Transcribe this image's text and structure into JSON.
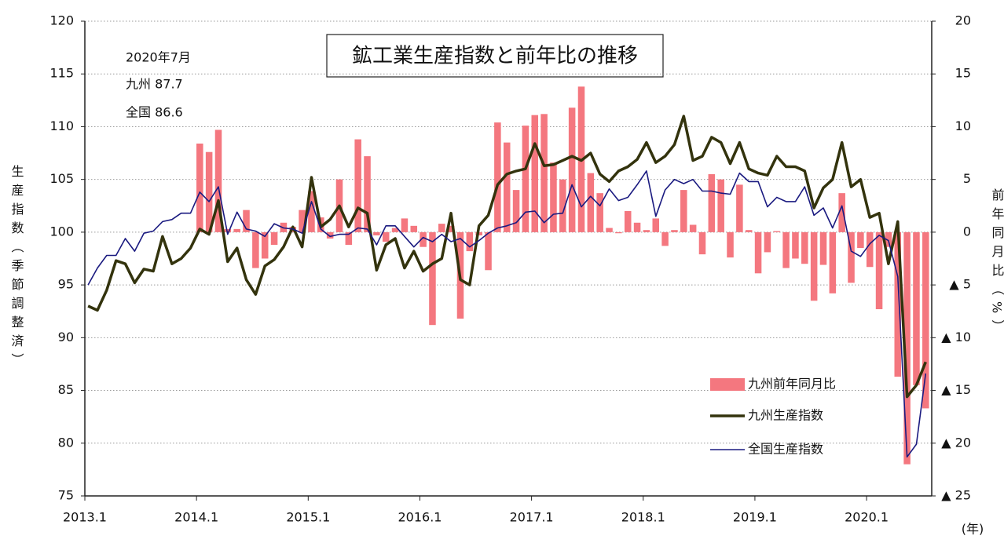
{
  "chart_data": {
    "type": "combo",
    "title": "鉱工業生産指数と前年比の推移",
    "annotations": [
      "2020年7月",
      "九州  87.7",
      "全国  86.6"
    ],
    "y_label": "生産指数（季節調整済）",
    "y2_label": "前年同月比（%）",
    "x_label": "(年)",
    "categories": [
      "2013.1",
      null,
      null,
      null,
      null,
      null,
      null,
      null,
      null,
      null,
      null,
      null,
      "2014.1",
      null,
      null,
      null,
      null,
      null,
      null,
      null,
      null,
      null,
      null,
      null,
      "2015.1",
      null,
      null,
      null,
      null,
      null,
      null,
      null,
      null,
      null,
      null,
      null,
      "2016.1",
      null,
      null,
      null,
      null,
      null,
      null,
      null,
      null,
      null,
      null,
      null,
      "2017.1",
      null,
      null,
      null,
      null,
      null,
      null,
      null,
      null,
      null,
      null,
      null,
      "2018.1",
      null,
      null,
      null,
      null,
      null,
      null,
      null,
      null,
      null,
      null,
      null,
      "2019.1",
      null,
      null,
      null,
      null,
      null,
      null,
      null,
      null,
      null,
      null,
      null,
      "2020.1",
      null,
      null,
      null,
      null,
      null,
      null
    ],
    "series": [
      {
        "name": "九州前年同月比",
        "type": "bar",
        "axis": "y2",
        "color": "#f4777f",
        "values": [
          null,
          null,
          null,
          null,
          null,
          null,
          null,
          null,
          null,
          null,
          null,
          null,
          8.4,
          7.6,
          9.7,
          0.3,
          0.3,
          2.1,
          -3.4,
          -2.5,
          -1.2,
          0.9,
          0.5,
          2.1,
          3.9,
          1.4,
          -0.6,
          5.0,
          -1.2,
          8.8,
          7.2,
          -0.3,
          -0.9,
          0.4,
          1.3,
          0.6,
          -1.4,
          -8.8,
          0.8,
          0.6,
          -8.2,
          -1.8,
          -0.3,
          -3.6,
          10.4,
          8.5,
          4.0,
          10.1,
          11.1,
          11.2,
          6.6,
          5.0,
          11.8,
          13.8,
          5.6,
          3.7,
          0.4,
          -0.1,
          2.0,
          0.9,
          0.2,
          1.3,
          -1.3,
          0.2,
          4.0,
          0.7,
          -2.1,
          5.5,
          5.0,
          -2.4,
          4.5,
          0.2,
          -3.9,
          -1.9,
          0.1,
          -3.4,
          -2.5,
          -3.0,
          -6.5,
          -3.1,
          -5.8,
          3.7,
          -4.8,
          -1.5,
          -3.3,
          -7.3,
          -1.4,
          -13.7,
          -22.0,
          -14.5,
          -16.7
        ]
      },
      {
        "name": "九州生産指数",
        "type": "line",
        "color": "#33330d",
        "width": 3.5,
        "values": [
          93.0,
          92.6,
          94.5,
          97.3,
          97.0,
          95.2,
          96.5,
          96.3,
          99.6,
          97.0,
          97.5,
          98.5,
          100.3,
          99.8,
          103.0,
          97.2,
          98.5,
          95.5,
          94.1,
          96.8,
          97.4,
          98.6,
          100.5,
          98.6,
          105.2,
          100.5,
          101.2,
          102.5,
          100.5,
          102.3,
          101.8,
          96.4,
          98.8,
          99.4,
          96.6,
          98.2,
          96.3,
          97.0,
          97.5,
          101.8,
          95.5,
          95.0,
          100.6,
          101.6,
          104.5,
          105.5,
          105.8,
          106.0,
          108.4,
          106.3,
          106.4,
          106.8,
          107.2,
          106.8,
          107.5,
          105.5,
          104.8,
          105.8,
          106.2,
          106.9,
          108.5,
          106.6,
          107.2,
          108.3,
          111.0,
          106.8,
          107.2,
          109.0,
          108.5,
          106.5,
          108.5,
          106.0,
          105.6,
          105.4,
          107.2,
          106.2,
          106.2,
          105.8,
          102.3,
          104.2,
          105.0,
          108.5,
          104.3,
          105.0,
          101.4,
          101.8,
          97.0,
          101.0,
          84.4,
          85.5,
          87.7
        ]
      },
      {
        "name": "全国生産指数",
        "type": "line",
        "color": "#1a1a80",
        "width": 1.6,
        "values": [
          95.0,
          96.6,
          97.8,
          97.8,
          99.4,
          98.2,
          99.9,
          100.1,
          101.0,
          101.2,
          101.8,
          101.8,
          103.8,
          102.9,
          104.3,
          99.8,
          101.9,
          100.3,
          100.1,
          99.6,
          100.8,
          100.4,
          100.3,
          99.9,
          102.9,
          100.3,
          99.6,
          99.8,
          99.8,
          100.4,
          100.3,
          98.8,
          100.6,
          100.6,
          99.6,
          98.6,
          99.5,
          99.1,
          99.8,
          99.1,
          99.4,
          98.6,
          99.2,
          99.9,
          100.4,
          100.6,
          100.9,
          101.9,
          102.0,
          100.9,
          101.7,
          101.8,
          104.5,
          102.4,
          103.4,
          102.5,
          104.1,
          103.0,
          103.3,
          104.5,
          105.8,
          101.5,
          104.0,
          105.0,
          104.6,
          105.0,
          103.9,
          103.9,
          103.7,
          103.6,
          105.6,
          104.8,
          104.8,
          102.4,
          103.3,
          102.9,
          102.9,
          104.3,
          101.6,
          102.3,
          100.4,
          102.5,
          98.2,
          97.7,
          98.9,
          99.7,
          99.2,
          95.8,
          78.7,
          79.9,
          86.6
        ]
      }
    ],
    "ylim": [
      75,
      120
    ],
    "yticks": [
      75,
      80,
      85,
      90,
      95,
      100,
      105,
      110,
      115,
      120
    ],
    "y2lim": [
      -25,
      20
    ],
    "y2ticks": [
      {
        "value": -25,
        "label": "▲ 25"
      },
      {
        "value": -20,
        "label": "▲ 20"
      },
      {
        "value": -15,
        "label": "▲ 15"
      },
      {
        "value": -10,
        "label": "▲ 10"
      },
      {
        "value": -5,
        "label": "▲ 5"
      },
      0,
      5,
      10,
      15,
      20
    ],
    "grid": true
  }
}
